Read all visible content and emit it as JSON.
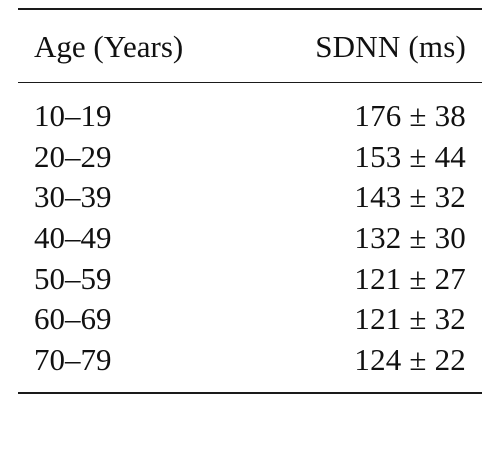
{
  "table": {
    "columns": {
      "age": "Age (Years)",
      "sdnn": "SDNN (ms)"
    },
    "rows": [
      {
        "age": "10–19",
        "sdnn": "176 ± 38"
      },
      {
        "age": "20–29",
        "sdnn": "153 ± 44"
      },
      {
        "age": "30–39",
        "sdnn": "143 ± 32"
      },
      {
        "age": "40–49",
        "sdnn": "132 ± 30"
      },
      {
        "age": "50–59",
        "sdnn": "121 ± 27"
      },
      {
        "age": "60–69",
        "sdnn": "121 ± 32"
      },
      {
        "age": "70–79",
        "sdnn": "124 ± 22"
      }
    ]
  }
}
